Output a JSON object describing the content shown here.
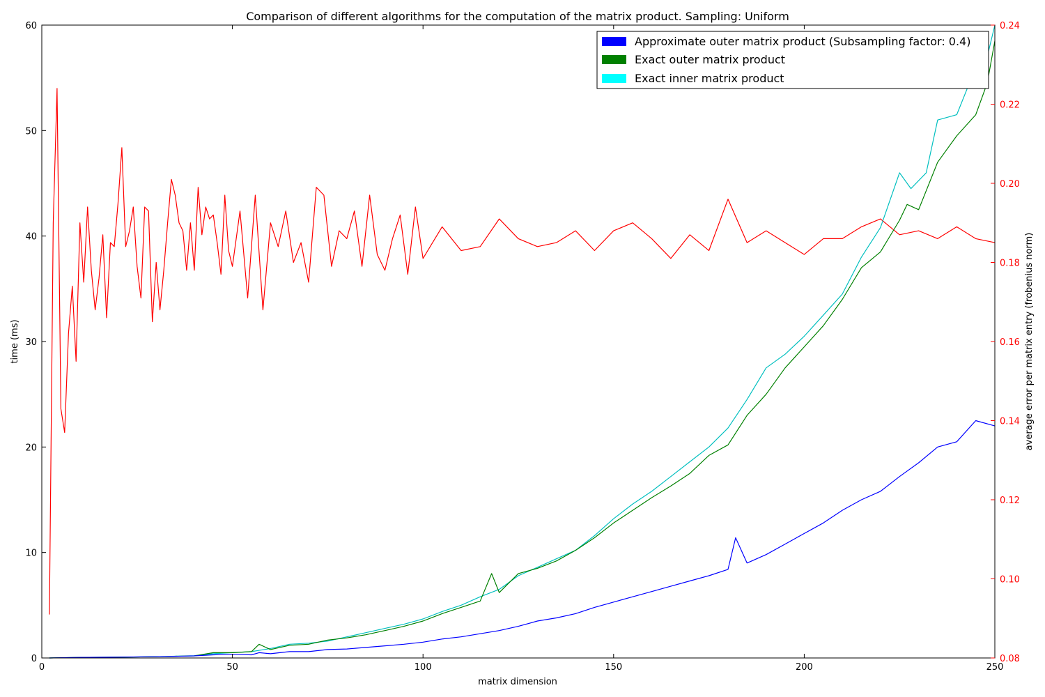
{
  "chart_data": {
    "type": "line",
    "title": "Comparison of different algorithms for the computation of the matrix product. Sampling: Uniform",
    "xlabel": "matrix dimension",
    "ylabel": "time (ms)",
    "y2label": "average error per matrix entry (frobenius norm)",
    "xlim": [
      0,
      250
    ],
    "ylim": [
      0,
      60
    ],
    "y2lim": [
      0.08,
      0.24
    ],
    "xticks": [
      "0",
      "50",
      "100",
      "150",
      "200",
      "250"
    ],
    "yticks": [
      "0",
      "10",
      "20",
      "30",
      "40",
      "50",
      "60"
    ],
    "y2ticks": [
      "0.08",
      "0.10",
      "0.12",
      "0.14",
      "0.16",
      "0.18",
      "0.20",
      "0.22",
      "0.24"
    ],
    "grid": false,
    "legend_position": "top-right",
    "colors": {
      "approx": "#0000ff",
      "exact_outer": "#008000",
      "exact_inner": "#00bfbf",
      "error": "#ff0000",
      "exact_inner_legend": "#00ffff"
    },
    "legend": [
      "Approximate outer matrix product (Subsampling factor: 0.4)",
      "Exact outer matrix product",
      "Exact inner matrix product"
    ],
    "series": [
      {
        "name": "Approximate outer matrix product (Subsampling factor: 0.4)",
        "axis": "left",
        "x": [
          2,
          10,
          20,
          30,
          40,
          45,
          50,
          55,
          57,
          60,
          65,
          70,
          75,
          80,
          85,
          90,
          95,
          100,
          105,
          110,
          115,
          120,
          125,
          130,
          135,
          140,
          145,
          150,
          155,
          160,
          165,
          170,
          175,
          180,
          182,
          185,
          190,
          195,
          200,
          205,
          210,
          215,
          220,
          225,
          230,
          235,
          240,
          245,
          250
        ],
        "values": [
          0.0,
          0.05,
          0.08,
          0.12,
          0.2,
          0.3,
          0.35,
          0.3,
          0.5,
          0.4,
          0.6,
          0.6,
          0.8,
          0.85,
          1.0,
          1.15,
          1.3,
          1.5,
          1.8,
          2.0,
          2.3,
          2.6,
          3.0,
          3.5,
          3.8,
          4.2,
          4.8,
          5.3,
          5.8,
          6.3,
          6.8,
          7.3,
          7.8,
          8.4,
          11.4,
          9.0,
          9.8,
          10.8,
          11.8,
          12.8,
          14.0,
          15.0,
          15.8,
          17.2,
          18.5,
          20.0,
          20.5,
          22.5,
          22.0
        ]
      },
      {
        "name": "Exact outer matrix product",
        "axis": "left",
        "x": [
          2,
          10,
          20,
          30,
          40,
          45,
          50,
          55,
          57,
          60,
          65,
          70,
          75,
          80,
          85,
          90,
          95,
          100,
          105,
          110,
          115,
          118,
          120,
          125,
          130,
          135,
          140,
          145,
          150,
          155,
          160,
          165,
          170,
          175,
          180,
          185,
          190,
          195,
          200,
          205,
          210,
          215,
          220,
          225,
          227,
          230,
          235,
          240,
          245,
          248,
          250
        ],
        "values": [
          0.0,
          0.05,
          0.08,
          0.12,
          0.2,
          0.5,
          0.5,
          0.6,
          1.3,
          0.8,
          1.2,
          1.3,
          1.7,
          1.9,
          2.2,
          2.6,
          3.0,
          3.5,
          4.2,
          4.8,
          5.4,
          8.0,
          6.2,
          8.0,
          8.5,
          9.2,
          10.2,
          11.4,
          12.8,
          14.0,
          15.2,
          16.3,
          17.5,
          19.2,
          20.2,
          23.0,
          25.0,
          27.5,
          29.5,
          31.5,
          34.0,
          37.0,
          38.5,
          41.5,
          43.0,
          42.5,
          47.0,
          49.5,
          51.5,
          54.5,
          58.5
        ]
      },
      {
        "name": "Exact inner matrix product",
        "axis": "left",
        "x": [
          2,
          10,
          20,
          30,
          40,
          45,
          50,
          55,
          60,
          65,
          70,
          75,
          80,
          85,
          90,
          95,
          100,
          105,
          110,
          115,
          120,
          125,
          130,
          135,
          140,
          145,
          150,
          155,
          160,
          165,
          170,
          175,
          180,
          185,
          190,
          195,
          200,
          205,
          210,
          215,
          220,
          225,
          228,
          232,
          235,
          240,
          245,
          248,
          250
        ],
        "values": [
          0.0,
          0.05,
          0.08,
          0.12,
          0.22,
          0.4,
          0.5,
          0.6,
          0.9,
          1.3,
          1.4,
          1.6,
          2.0,
          2.4,
          2.8,
          3.2,
          3.7,
          4.4,
          5.0,
          5.8,
          6.5,
          7.8,
          8.6,
          9.4,
          10.2,
          11.6,
          13.2,
          14.6,
          15.8,
          17.2,
          18.6,
          20.0,
          21.8,
          24.5,
          27.5,
          28.8,
          30.5,
          32.5,
          34.5,
          38.0,
          40.8,
          46.0,
          44.5,
          46.0,
          51.0,
          51.5,
          56.0,
          57.0,
          60.0
        ]
      },
      {
        "name": "average error per matrix entry (frobenius norm)",
        "axis": "right",
        "x": [
          2,
          3,
          4,
          5,
          6,
          7,
          8,
          9,
          10,
          11,
          12,
          13,
          14,
          15,
          16,
          17,
          18,
          19,
          20,
          21,
          22,
          23,
          24,
          25,
          26,
          27,
          28,
          29,
          30,
          31,
          32,
          33,
          34,
          35,
          36,
          37,
          38,
          39,
          40,
          41,
          42,
          43,
          44,
          45,
          46,
          47,
          48,
          49,
          50,
          52,
          54,
          56,
          58,
          60,
          62,
          64,
          66,
          68,
          70,
          72,
          74,
          76,
          78,
          80,
          82,
          84,
          86,
          88,
          90,
          92,
          94,
          96,
          98,
          100,
          105,
          110,
          115,
          120,
          125,
          130,
          135,
          140,
          145,
          150,
          155,
          160,
          165,
          170,
          175,
          180,
          185,
          190,
          195,
          200,
          205,
          210,
          215,
          220,
          225,
          230,
          235,
          240,
          245,
          250
        ],
        "values": [
          0.091,
          0.19,
          0.224,
          0.143,
          0.137,
          0.162,
          0.174,
          0.155,
          0.19,
          0.175,
          0.194,
          0.178,
          0.168,
          0.176,
          0.187,
          0.166,
          0.185,
          0.184,
          0.195,
          0.209,
          0.184,
          0.188,
          0.194,
          0.179,
          0.171,
          0.194,
          0.193,
          0.165,
          0.18,
          0.168,
          0.178,
          0.19,
          0.201,
          0.197,
          0.19,
          0.188,
          0.178,
          0.19,
          0.178,
          0.199,
          0.187,
          0.194,
          0.191,
          0.192,
          0.185,
          0.177,
          0.197,
          0.183,
          0.179,
          0.193,
          0.171,
          0.197,
          0.168,
          0.19,
          0.184,
          0.193,
          0.18,
          0.185,
          0.175,
          0.199,
          0.197,
          0.179,
          0.188,
          0.186,
          0.193,
          0.179,
          0.197,
          0.182,
          0.178,
          0.186,
          0.192,
          0.177,
          0.194,
          0.181,
          0.189,
          0.183,
          0.184,
          0.191,
          0.186,
          0.184,
          0.185,
          0.188,
          0.183,
          0.188,
          0.19,
          0.186,
          0.181,
          0.187,
          0.183,
          0.196,
          0.185,
          0.188,
          0.185,
          0.182,
          0.186,
          0.186,
          0.189,
          0.191,
          0.187,
          0.188,
          0.186,
          0.189,
          0.186,
          0.185
        ]
      }
    ]
  }
}
